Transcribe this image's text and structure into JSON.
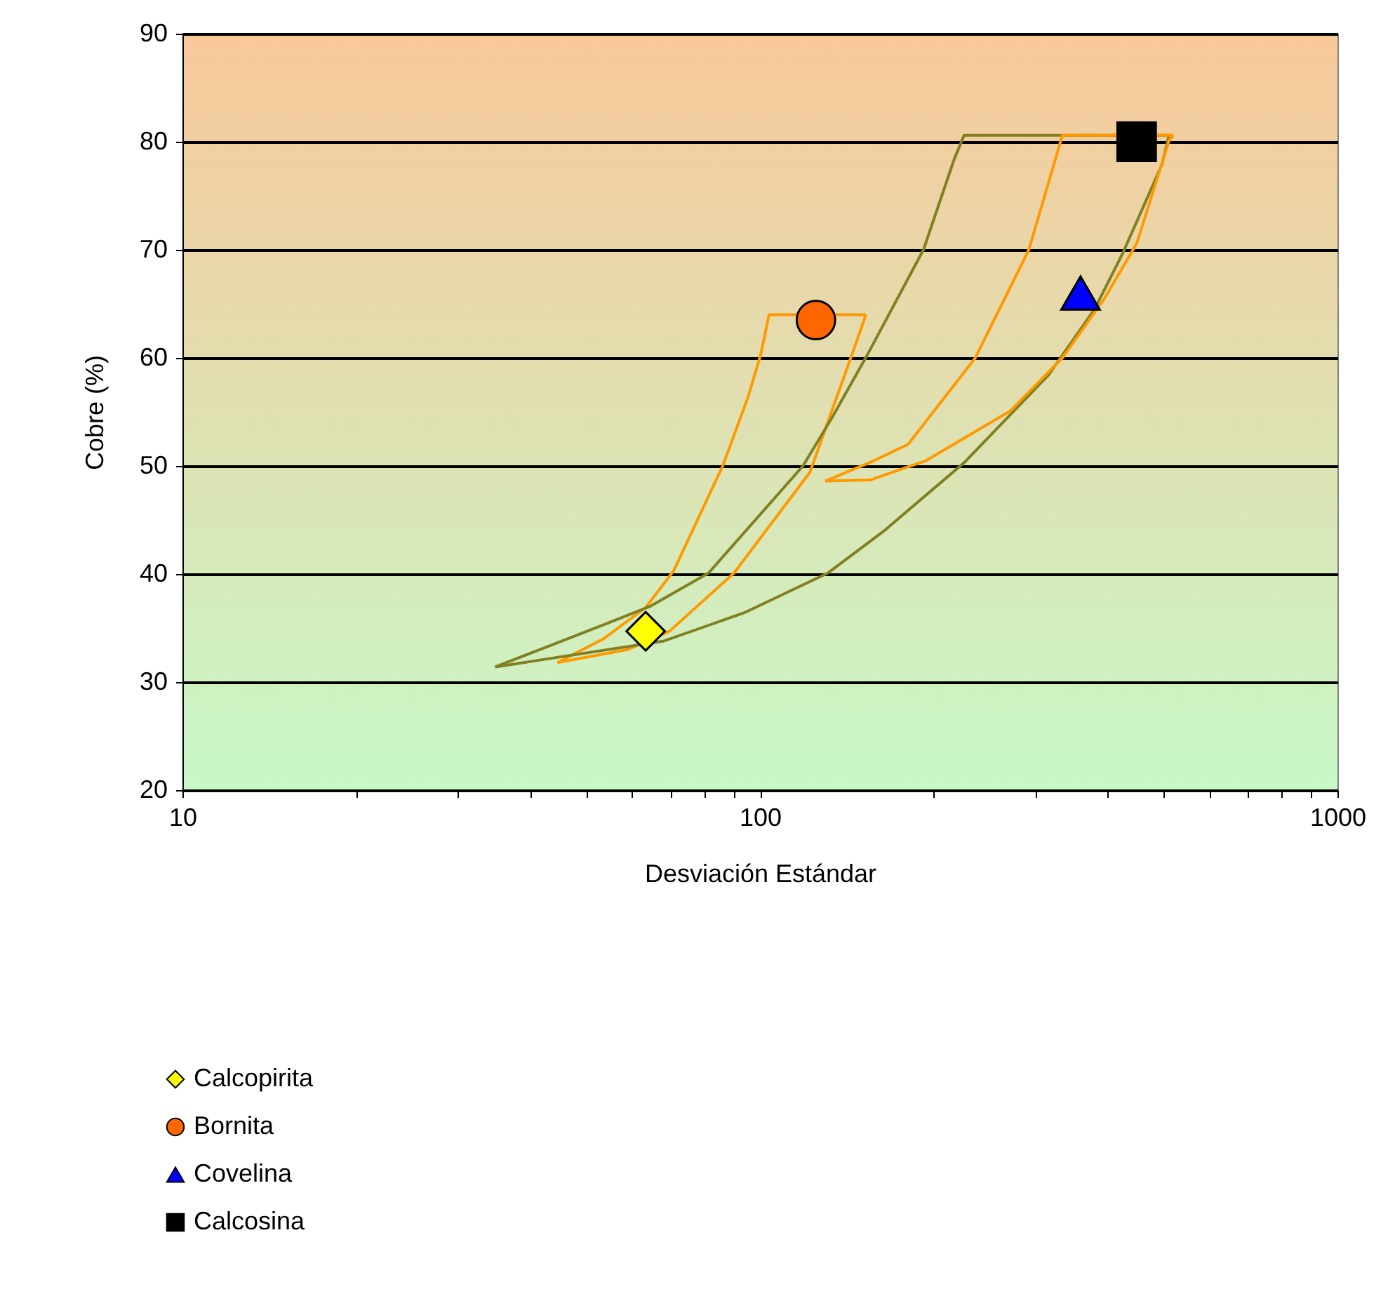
{
  "chart_data": {
    "type": "scatter",
    "xlabel": "Desviación Estándar",
    "ylabel": "Cobre (%)",
    "log": "x",
    "xlim": [
      10,
      1000
    ],
    "xticks": [
      10,
      {
        "value": 20,
        "label": null
      },
      {
        "value": 30,
        "label": null
      },
      {
        "value": 40,
        "label": null
      },
      {
        "value": 50,
        "label": null
      },
      {
        "value": 60,
        "label": null
      },
      {
        "value": 70,
        "label": null
      },
      {
        "value": 80,
        "label": null
      },
      {
        "value": 90,
        "label": null
      },
      100,
      {
        "value": 200,
        "label": null
      },
      {
        "value": 300,
        "label": null
      },
      {
        "value": 400,
        "label": null
      },
      {
        "value": 500,
        "label": null
      },
      {
        "value": 600,
        "label": null
      },
      {
        "value": 700,
        "label": null
      },
      {
        "value": 800,
        "label": null
      },
      {
        "value": 900,
        "label": null
      },
      1000
    ],
    "ylim": [
      20,
      90
    ],
    "yticks": [
      20,
      30,
      40,
      50,
      60,
      70,
      80,
      90
    ],
    "grid": "y",
    "legend": "bottom left",
    "series": [
      {
        "type": "line",
        "color": "#ff9900",
        "x": [
          44.6,
          53.6,
          63.4,
          70.9,
          86.2,
          95.4,
          100.3,
          103.7,
          152.6
        ],
        "values": [
          31.8,
          34.0,
          36.9,
          40.3,
          50.0,
          56.4,
          60.3,
          64.0,
          64.0
        ]
      },
      {
        "type": "line",
        "color": "#ff9900",
        "x": [
          44.6,
          58.9,
          69.7,
          90.2,
          122.0,
          144.3,
          152.6
        ],
        "values": [
          31.8,
          33.0,
          34.7,
          40.1,
          49.4,
          60.3,
          64.0
        ]
      },
      {
        "type": "line",
        "color": "#808020",
        "x": [
          34.8,
          53.6,
          64.5,
          81.5,
          118.7,
          133.4,
          153.5,
          191.9,
          217.0,
          225.7,
          510.9
        ],
        "values": [
          31.4,
          35.3,
          37.0,
          40.1,
          50.0,
          54.5,
          60.3,
          70.0,
          78.4,
          80.6,
          80.6
        ]
      },
      {
        "type": "line",
        "color": "#808020",
        "x": [
          34.8,
          68.2,
          93.8,
          131.2,
          164.1,
          225.7,
          315.8,
          379.7,
          424.9,
          496.8,
          510.9
        ],
        "values": [
          31.4,
          33.8,
          36.4,
          40.1,
          44.0,
          50.3,
          58.4,
          64.5,
          69.7,
          77.9,
          80.6
        ]
      },
      {
        "type": "line",
        "color": "#ff9900",
        "x": [
          129.7,
          157.8,
          180.5,
          236.0,
          292.1,
          334.0,
          519.6
        ],
        "values": [
          48.6,
          50.5,
          52.0,
          60.0,
          70.0,
          80.6,
          80.6
        ]
      },
      {
        "type": "line",
        "color": "#ff9900",
        "x": [
          129.7,
          155.2,
          194.1,
          271.5,
          334.0,
          395.0,
          449.3,
          510.9,
          519.6
        ],
        "values": [
          48.6,
          48.7,
          50.5,
          55.1,
          60.0,
          65.5,
          70.6,
          80.1,
          80.6
        ]
      },
      {
        "type": "scatter",
        "name": "Calcopirita",
        "color": "#ffff00",
        "marker": "diamond",
        "x": [
          63.4
        ],
        "values": [
          34.7
        ]
      },
      {
        "type": "scatter",
        "name": "Bornita",
        "color": "#ff6600",
        "marker": "circle",
        "x": [
          125
        ],
        "values": [
          63.5
        ]
      },
      {
        "type": "scatter",
        "name": "Covelina",
        "color": "#0000ff",
        "marker": "triangle",
        "x": [
          359
        ],
        "values": [
          66
        ]
      },
      {
        "type": "scatter",
        "name": "Calcosina",
        "color": "#000000",
        "marker": "square",
        "x": [
          449
        ],
        "values": [
          80
        ]
      }
    ]
  }
}
